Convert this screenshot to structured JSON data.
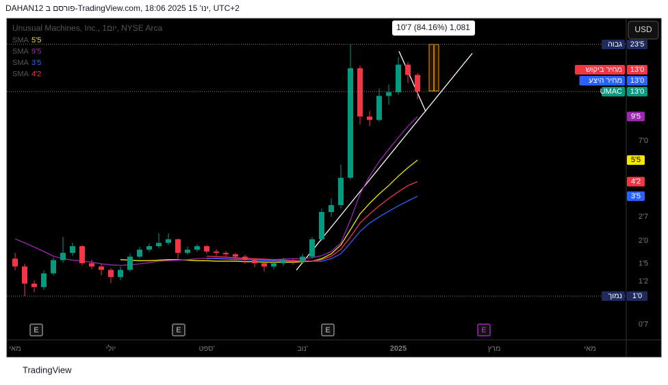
{
  "header": "DAHAN12 פורסם ב-TradingView.com, 18:06 2025 ינו' 15, UTC+2",
  "footer": "TradingView",
  "currency_button": "USD",
  "chart_data": {
    "type": "candlestick",
    "title": "Unusual Machines, Inc., 1יום, NYSE Arca",
    "log_scale": true,
    "up_color": "#089981",
    "down_color": "#f23645",
    "categories": [
      "מאי",
      null,
      null,
      null,
      null,
      null,
      null,
      null,
      null,
      null,
      "יולי",
      null,
      null,
      null,
      null,
      null,
      null,
      null,
      null,
      null,
      "ספט'",
      null,
      null,
      null,
      null,
      null,
      null,
      null,
      null,
      null,
      "נוב'",
      null,
      null,
      null,
      null,
      null,
      null,
      null,
      null,
      null,
      "2025",
      null,
      null,
      null,
      null,
      null,
      null,
      null,
      null,
      null,
      "מרץ",
      null,
      null,
      null,
      null,
      null,
      null,
      null,
      null,
      null,
      "מאי"
    ],
    "open": [
      1.6,
      1.45,
      1.17,
      1.12,
      1.33,
      1.57,
      1.72,
      1.87,
      1.51,
      1.45,
      1.39,
      1.27,
      1.39,
      1.64,
      1.79,
      1.87,
      1.95,
      2.04,
      1.72,
      1.79,
      1.87,
      1.75,
      1.72,
      1.69,
      1.64,
      1.57,
      1.51,
      1.45,
      1.51,
      1.57,
      1.54,
      1.64,
      2.04,
      2.87,
      3.13,
      4.41,
      17.4,
      9.5,
      9.1,
      12.3,
      12.9,
      18.2,
      16.0,
      null,
      null,
      null,
      null,
      null,
      null,
      null,
      null,
      null,
      null,
      null,
      null,
      null,
      null,
      null,
      null,
      null,
      null
    ],
    "high": [
      1.72,
      1.5,
      1.22,
      1.38,
      1.62,
      2.1,
      1.95,
      1.9,
      1.58,
      1.5,
      1.42,
      1.45,
      1.7,
      1.85,
      1.93,
      2.2,
      2.2,
      2.06,
      1.86,
      1.92,
      1.9,
      1.8,
      1.76,
      1.72,
      1.68,
      1.6,
      1.55,
      1.56,
      1.62,
      1.6,
      1.7,
      2.1,
      3.0,
      3.4,
      5.2,
      23.5,
      18.0,
      10.2,
      13.5,
      14.2,
      20.0,
      18.8,
      16.4,
      null,
      null,
      null,
      null,
      null,
      null,
      null,
      null,
      null,
      null,
      null,
      null,
      null,
      null,
      null,
      null,
      null,
      null
    ],
    "low": [
      1.38,
      1.0,
      1.05,
      1.08,
      1.3,
      1.52,
      1.66,
      1.47,
      1.4,
      1.3,
      1.18,
      1.22,
      1.36,
      1.6,
      1.74,
      1.82,
      1.9,
      1.6,
      1.68,
      1.74,
      1.7,
      1.66,
      1.62,
      1.58,
      1.5,
      1.44,
      1.36,
      1.4,
      1.46,
      1.48,
      1.5,
      1.6,
      2.0,
      2.7,
      3.0,
      4.3,
      8.6,
      8.4,
      8.9,
      11.0,
      12.5,
      14.5,
      11.8,
      null,
      null,
      null,
      null,
      null,
      null,
      null,
      null,
      null,
      null,
      null,
      null,
      null,
      null,
      null,
      null,
      null,
      null
    ],
    "close": [
      1.45,
      1.17,
      1.12,
      1.33,
      1.57,
      1.72,
      1.87,
      1.51,
      1.45,
      1.39,
      1.27,
      1.39,
      1.64,
      1.79,
      1.87,
      1.95,
      2.04,
      1.72,
      1.79,
      1.87,
      1.75,
      1.72,
      1.69,
      1.64,
      1.57,
      1.51,
      1.45,
      1.51,
      1.57,
      1.54,
      1.64,
      2.04,
      2.87,
      3.13,
      4.41,
      17.4,
      9.5,
      9.1,
      12.3,
      12.9,
      18.2,
      16.0,
      13.0,
      null,
      null,
      null,
      null,
      null,
      null,
      null,
      null,
      null,
      null,
      null,
      null,
      null,
      null,
      null,
      null,
      null,
      null
    ],
    "series": [
      {
        "name": "SMA",
        "color": "#f7e600",
        "last": {
          "value": 5.5,
          "label": "5'5"
        },
        "values": [
          null,
          null,
          null,
          null,
          null,
          null,
          null,
          null,
          null,
          null,
          null,
          1.58,
          1.57,
          1.56,
          1.56,
          1.57,
          1.58,
          1.58,
          1.57,
          1.56,
          1.56,
          1.55,
          1.55,
          1.55,
          1.54,
          1.54,
          1.53,
          1.53,
          1.53,
          1.53,
          1.54,
          1.55,
          1.6,
          1.7,
          1.9,
          2.3,
          2.8,
          3.2,
          3.6,
          4.0,
          4.5,
          5.0,
          5.5,
          null,
          null,
          null,
          null,
          null,
          null,
          null,
          null,
          null,
          null,
          null,
          null,
          null,
          null,
          null,
          null,
          null,
          null
        ]
      },
      {
        "name": "SMA",
        "color": "#9c27b0",
        "last": {
          "value": 9.5,
          "label": "9'5"
        },
        "values": [
          2.05,
          1.95,
          1.85,
          1.75,
          1.65,
          1.6,
          1.57,
          1.55,
          1.53,
          1.5,
          1.48,
          1.47,
          1.48,
          1.5,
          1.52,
          1.55,
          1.56,
          1.57,
          1.58,
          1.6,
          1.61,
          1.61,
          1.6,
          1.6,
          1.59,
          1.58,
          1.58,
          1.58,
          1.59,
          1.6,
          1.6,
          1.62,
          1.66,
          1.75,
          1.95,
          2.6,
          3.6,
          4.5,
          5.4,
          6.3,
          7.3,
          8.4,
          9.5,
          null,
          null,
          null,
          null,
          null,
          null,
          null,
          null,
          null,
          null,
          null,
          null,
          null,
          null,
          null,
          null,
          null,
          null
        ]
      },
      {
        "name": "SMA",
        "color": "#2962ff",
        "last": {
          "value": 3.5,
          "label": "3'5"
        },
        "values": [
          null,
          null,
          null,
          null,
          null,
          null,
          null,
          null,
          null,
          null,
          null,
          null,
          null,
          null,
          null,
          null,
          null,
          null,
          null,
          null,
          1.6,
          1.6,
          1.59,
          1.58,
          1.58,
          1.57,
          1.56,
          1.56,
          1.55,
          1.55,
          1.55,
          1.55,
          1.55,
          1.6,
          1.7,
          1.95,
          2.25,
          2.5,
          2.7,
          2.9,
          3.1,
          3.3,
          3.5,
          null,
          null,
          null,
          null,
          null,
          null,
          null,
          null,
          null,
          null,
          null,
          null,
          null,
          null,
          null,
          null,
          null,
          null
        ]
      },
      {
        "name": "SMA",
        "color": "#f23645",
        "last": {
          "value": 4.2,
          "label": "4'2"
        },
        "values": [
          null,
          null,
          null,
          null,
          null,
          null,
          null,
          null,
          null,
          null,
          null,
          null,
          null,
          null,
          null,
          null,
          null,
          null,
          null,
          null,
          1.65,
          1.64,
          1.63,
          1.62,
          1.61,
          1.6,
          1.59,
          1.58,
          1.57,
          1.56,
          1.56,
          1.55,
          1.58,
          1.65,
          1.8,
          2.1,
          2.5,
          2.8,
          3.1,
          3.4,
          3.7,
          4.0,
          4.2,
          null,
          null,
          null,
          null,
          null,
          null,
          null,
          null,
          null,
          null,
          null,
          null,
          null,
          null,
          null,
          null,
          null,
          null
        ]
      }
    ],
    "ylim": [
      0.578,
      32.2
    ],
    "yticks": [
      {
        "value": 7.0,
        "label": "7'0"
      },
      {
        "value": 2.7,
        "label": "2'7"
      },
      {
        "value": 2.0,
        "label": "2'0"
      },
      {
        "value": 1.5,
        "label": "1'5"
      },
      {
        "value": 1.2,
        "label": "1'2"
      },
      {
        "value": 0.7,
        "label": "0'7"
      }
    ],
    "price_tags": [
      {
        "label": "גבוה",
        "price": {
          "value": 23.5,
          "label": "23'5"
        },
        "color": "#1e2b5c"
      },
      {
        "label": "מחיר ביקוש",
        "price": {
          "value": 13.0,
          "label": "13'0"
        },
        "color": "#f23645"
      },
      {
        "label": "מחיר היצע",
        "price": {
          "value": 13.0,
          "label": "13'0"
        },
        "color": "#2962ff"
      },
      {
        "label": "UMAC",
        "price": {
          "value": 13.0,
          "label": "13'0"
        },
        "color": "#089981"
      },
      {
        "label": "נמוך",
        "price": {
          "value": 1.0,
          "label": "1'0"
        },
        "color": "#1e2b5c"
      }
    ],
    "measure": "10'7 (84.16%) 1,081",
    "events": [
      "E",
      "E",
      "E",
      "E"
    ]
  }
}
